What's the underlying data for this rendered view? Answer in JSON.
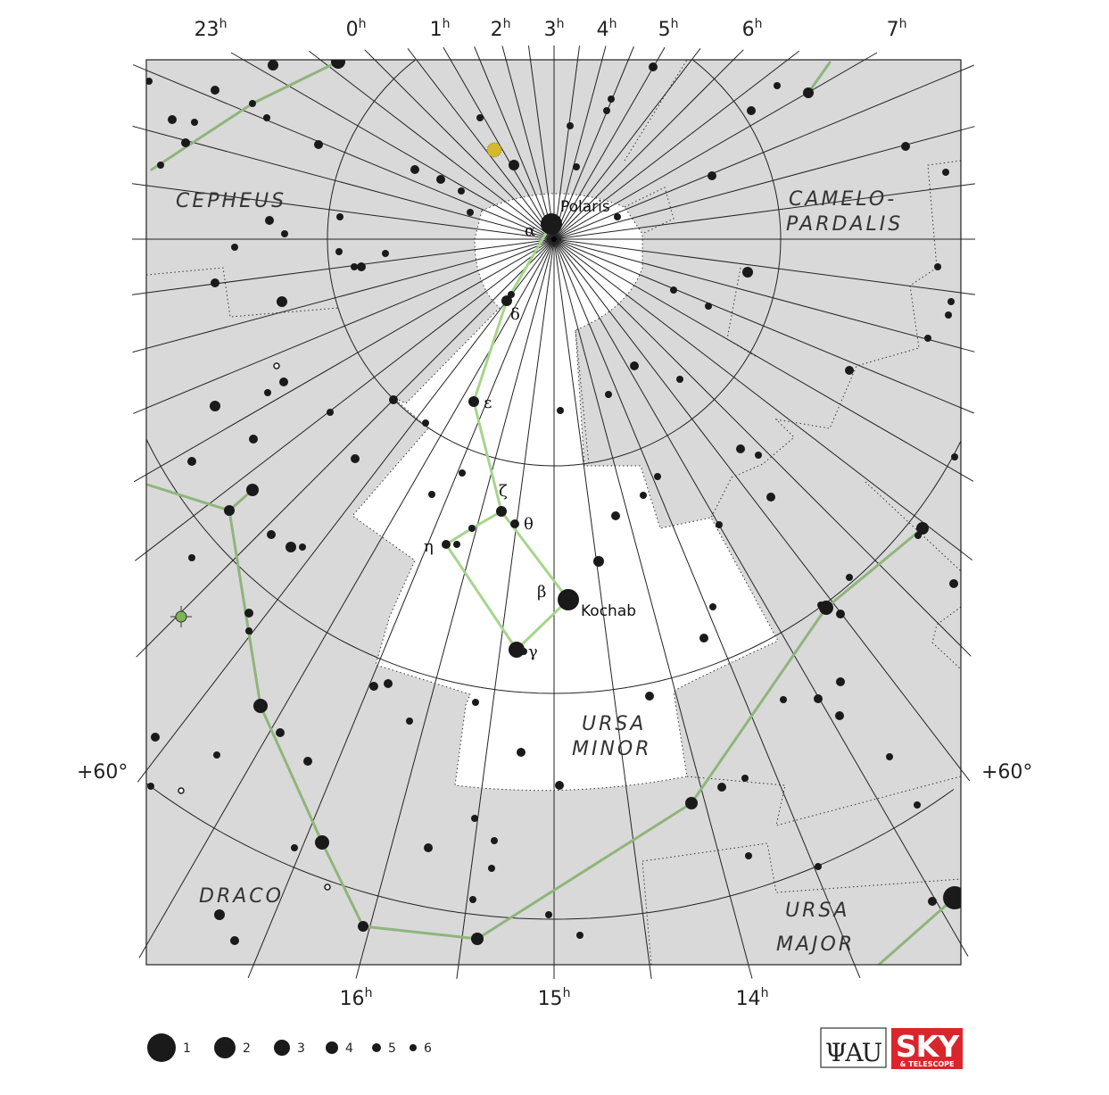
{
  "map": {
    "ra_top_labels": [
      {
        "value": "23",
        "unit": "h"
      },
      {
        "value": "0",
        "unit": "h"
      },
      {
        "value": "1",
        "unit": "h"
      },
      {
        "value": "2",
        "unit": "h"
      },
      {
        "value": "3",
        "unit": "h"
      },
      {
        "value": "4",
        "unit": "h"
      },
      {
        "value": "5",
        "unit": "h"
      },
      {
        "value": "6",
        "unit": "h"
      },
      {
        "value": "7",
        "unit": "h"
      }
    ],
    "ra_bottom_labels": [
      {
        "value": "16",
        "unit": "h"
      },
      {
        "value": "15",
        "unit": "h"
      },
      {
        "value": "14",
        "unit": "h"
      }
    ],
    "dec_label": "+60°",
    "constellations": {
      "cepheus": "CEPHEUS",
      "camelopardalis_1": "CAMELO-",
      "camelopardalis_2": "PARDALIS",
      "ursa_minor_1": "URSA",
      "ursa_minor_2": "MINOR",
      "draco": "DRACO",
      "ursa_major_1": "URSA",
      "ursa_major_2": "MAJOR"
    },
    "star_names": {
      "polaris": "Polaris",
      "kochab": "Kochab"
    },
    "greek": {
      "alpha": "α",
      "beta": "β",
      "gamma": "γ",
      "delta": "δ",
      "epsilon": "ε",
      "zeta": "ζ",
      "eta": "η",
      "theta": "θ"
    },
    "colors": {
      "sky": "#d9d9d9",
      "constellation_region": "#ffffff",
      "asterism_line": "#a6d58c",
      "neighbor_line": "#8fb57b",
      "star": "#1a1a1a",
      "yellow_object": "#d3b92c",
      "green_object": "#7fb456"
    }
  },
  "legend": {
    "magnitudes": [
      "1",
      "2",
      "3",
      "4",
      "5",
      "6"
    ]
  },
  "logos": {
    "iau": "IAU",
    "sky": "SKY",
    "telescope": "& TELESCOPE"
  }
}
